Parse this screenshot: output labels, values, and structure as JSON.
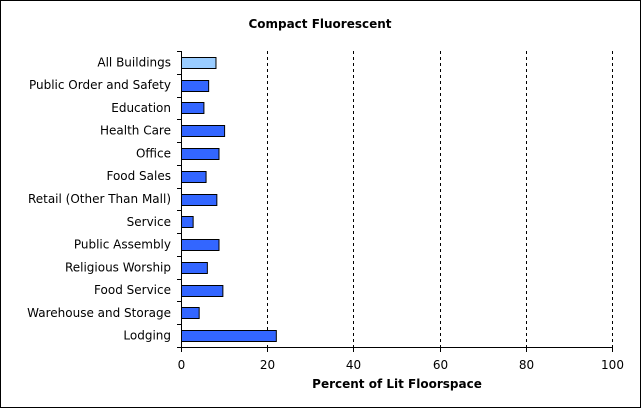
{
  "chart_data": {
    "type": "bar",
    "orientation": "horizontal",
    "title": "Compact Fluorescent",
    "xlabel": "Percent of Lit Floorspace",
    "ylabel": "",
    "xlim": [
      0,
      100
    ],
    "xticks": [
      "0",
      "20",
      "40",
      "60",
      "80",
      "100"
    ],
    "grid": "vertical dashed",
    "categories": [
      "All Buildings",
      "Public Order and Safety",
      "Education",
      "Health Care",
      "Office",
      "Food Sales",
      "Retail (Other Than Mall)",
      "Service",
      "Public Assembly",
      "Religious Worship",
      "Food Service",
      "Warehouse and Storage",
      "Lodging"
    ],
    "values": [
      8,
      6.3,
      5.2,
      10,
      8.7,
      5.7,
      8.2,
      2.7,
      8.7,
      6,
      9.6,
      4.1,
      22
    ],
    "colors": {
      "highlight": "#99ccff",
      "bar": "#3366ff",
      "outline": "#000000"
    }
  }
}
